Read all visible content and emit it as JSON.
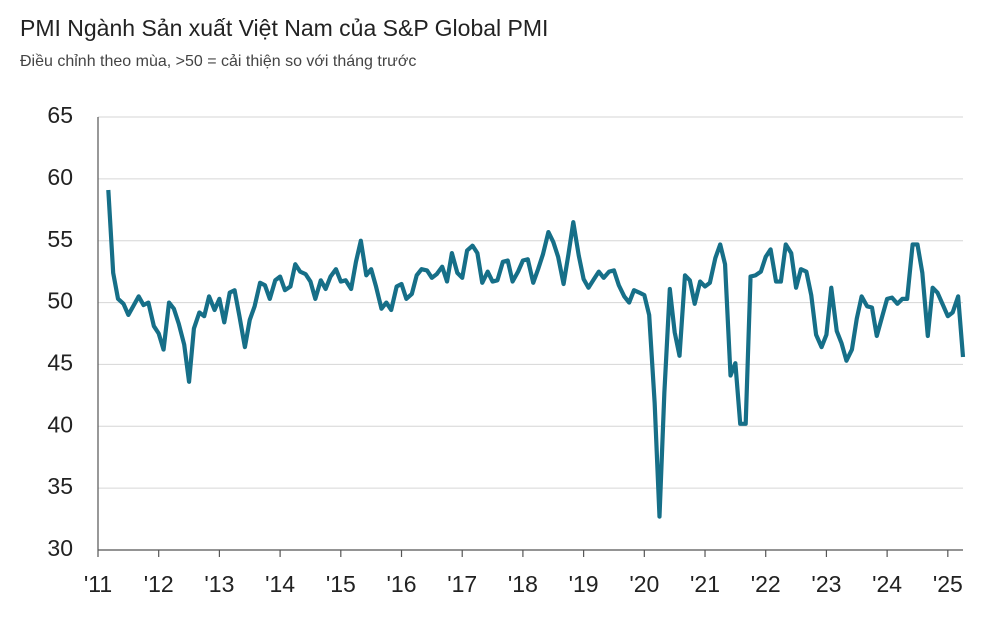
{
  "chart_data": {
    "type": "line",
    "title": "PMI Ngành Sản xuất Việt Nam của S&P Global PMI",
    "subtitle": "Điều chỉnh theo mùa, >50 = cải thiện so với tháng trước",
    "color": "#166f88",
    "grid": true,
    "ylim": [
      30,
      65
    ],
    "yticks": [
      30,
      35,
      40,
      45,
      50,
      55,
      60,
      65
    ],
    "xlim": [
      2011,
      2025.25
    ],
    "xticks": [
      {
        "value": 2011,
        "label": "'11"
      },
      {
        "value": 2012,
        "label": "'12"
      },
      {
        "value": 2013,
        "label": "'13"
      },
      {
        "value": 2014,
        "label": "'14"
      },
      {
        "value": 2015,
        "label": "'15"
      },
      {
        "value": 2016,
        "label": "'16"
      },
      {
        "value": 2017,
        "label": "'17"
      },
      {
        "value": 2018,
        "label": "'18"
      },
      {
        "value": 2019,
        "label": "'19"
      },
      {
        "value": 2020,
        "label": "'20"
      },
      {
        "value": 2021,
        "label": "'21"
      },
      {
        "value": 2022,
        "label": "'22"
      },
      {
        "value": 2023,
        "label": "'23"
      },
      {
        "value": 2024,
        "label": "'24"
      },
      {
        "value": 2025,
        "label": "'25"
      }
    ],
    "x": [
      2011.17,
      2011.25,
      2011.33,
      2011.42,
      2011.5,
      2011.58,
      2011.67,
      2011.75,
      2011.83,
      2011.92,
      2012,
      2012.08,
      2012.17,
      2012.25,
      2012.33,
      2012.42,
      2012.5,
      2012.58,
      2012.67,
      2012.75,
      2012.83,
      2012.92,
      2013,
      2013.08,
      2013.17,
      2013.25,
      2013.33,
      2013.42,
      2013.5,
      2013.58,
      2013.67,
      2013.75,
      2013.83,
      2013.92,
      2014,
      2014.08,
      2014.17,
      2014.25,
      2014.33,
      2014.42,
      2014.5,
      2014.58,
      2014.67,
      2014.75,
      2014.83,
      2014.92,
      2015,
      2015.08,
      2015.17,
      2015.25,
      2015.33,
      2015.42,
      2015.5,
      2015.58,
      2015.67,
      2015.75,
      2015.83,
      2015.92,
      2016,
      2016.08,
      2016.17,
      2016.25,
      2016.33,
      2016.42,
      2016.5,
      2016.58,
      2016.67,
      2016.75,
      2016.83,
      2016.92,
      2017,
      2017.08,
      2017.17,
      2017.25,
      2017.33,
      2017.42,
      2017.5,
      2017.58,
      2017.67,
      2017.75,
      2017.83,
      2017.92,
      2018,
      2018.08,
      2018.17,
      2018.25,
      2018.33,
      2018.42,
      2018.5,
      2018.58,
      2018.67,
      2018.75,
      2018.83,
      2018.92,
      2019,
      2019.08,
      2019.17,
      2019.25,
      2019.33,
      2019.42,
      2019.5,
      2019.58,
      2019.67,
      2019.75,
      2019.83,
      2019.92,
      2020,
      2020.08,
      2020.17,
      2020.25,
      2020.33,
      2020.42,
      2020.5,
      2020.58,
      2020.67,
      2020.75,
      2020.83,
      2020.92,
      2021,
      2021.08,
      2021.17,
      2021.25,
      2021.33,
      2021.42,
      2021.5,
      2021.58,
      2021.67,
      2021.75,
      2021.83,
      2021.92,
      2022,
      2022.08,
      2022.17,
      2022.25,
      2022.33,
      2022.42,
      2022.5,
      2022.58,
      2022.67,
      2022.75,
      2022.83,
      2022.92,
      2023,
      2023.08,
      2023.17,
      2023.25,
      2023.33,
      2023.42,
      2023.5,
      2023.58,
      2023.67,
      2023.75,
      2023.83,
      2023.92,
      2024,
      2024.08,
      2024.17,
      2024.25,
      2024.33,
      2024.42,
      2024.5,
      2024.58,
      2024.67,
      2024.75,
      2024.83,
      2024.92,
      2025,
      2025.08,
      2025.17,
      2025.25
    ],
    "values": [
      59.1,
      52.4,
      50.3,
      49.9,
      49.0,
      49.7,
      50.5,
      49.8,
      50.0,
      48.1,
      47.5,
      46.2,
      50.0,
      49.5,
      48.3,
      46.6,
      43.6,
      47.9,
      49.2,
      48.9,
      50.5,
      49.4,
      50.3,
      48.4,
      50.8,
      51.0,
      48.9,
      46.4,
      48.6,
      49.7,
      51.6,
      51.4,
      50.3,
      51.8,
      52.1,
      51.0,
      51.3,
      53.1,
      52.5,
      52.3,
      51.7,
      50.3,
      51.8,
      51.1,
      52.1,
      52.7,
      51.7,
      51.8,
      51.1,
      53.3,
      55.0,
      52.2,
      52.7,
      51.3,
      49.5,
      50.0,
      49.4,
      51.3,
      51.5,
      50.3,
      50.7,
      52.2,
      52.7,
      52.6,
      52.0,
      52.3,
      52.9,
      51.7,
      54.0,
      52.4,
      52.0,
      54.2,
      54.6,
      54.0,
      51.6,
      52.5,
      51.7,
      51.8,
      53.3,
      53.4,
      51.7,
      52.5,
      53.4,
      53.5,
      51.6,
      52.7,
      53.9,
      55.7,
      54.9,
      53.7,
      51.5,
      53.9,
      56.5,
      53.8,
      51.9,
      51.2,
      51.9,
      52.5,
      52.0,
      52.5,
      52.6,
      51.4,
      50.5,
      50.0,
      51.0,
      50.8,
      50.6,
      49.0,
      41.9,
      32.7,
      42.7,
      51.1,
      47.6,
      45.7,
      52.2,
      51.8,
      49.9,
      51.7,
      51.3,
      51.6,
      53.6,
      54.7,
      53.1,
      44.1,
      45.1,
      40.2,
      40.2,
      52.1,
      52.2,
      52.5,
      53.7,
      54.3,
      51.7,
      51.7,
      54.7,
      54.0,
      51.2,
      52.7,
      52.5,
      50.6,
      47.4,
      46.4,
      47.4,
      51.2,
      47.7,
      46.7,
      45.3,
      46.2,
      48.7,
      50.5,
      49.7,
      49.6,
      47.3,
      48.9,
      50.3,
      50.4,
      49.9,
      50.3,
      50.3,
      54.7,
      54.7,
      52.4,
      47.3,
      51.2,
      50.8,
      49.8,
      48.9,
      49.2,
      50.5,
      45.6
    ]
  }
}
